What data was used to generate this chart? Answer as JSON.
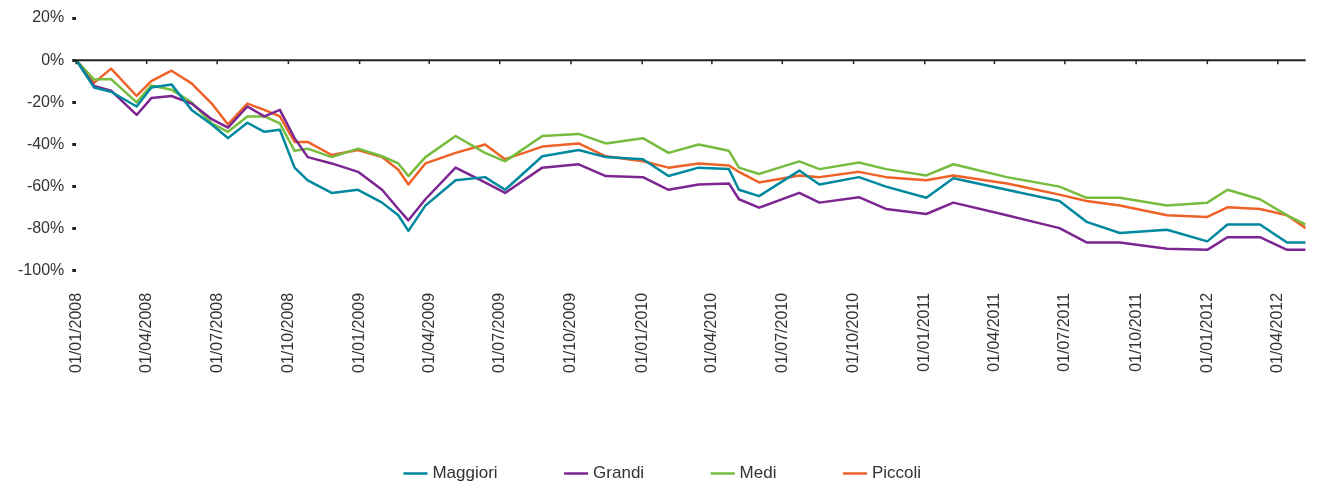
{
  "chart_data": {
    "type": "line",
    "legend": "bottom",
    "marker": "none",
    "line_style": "solid",
    "x": [
      "2008-01-01",
      "2008-01-24",
      "2008-02-15",
      "2008-03-19",
      "2008-04-07",
      "2008-05-03",
      "2008-05-29",
      "2008-06-24",
      "2008-07-15",
      "2008-08-09",
      "2008-08-31",
      "2008-09-20",
      "2008-10-09",
      "2008-10-26",
      "2008-11-26",
      "2008-12-30",
      "2009-01-30",
      "2009-02-20",
      "2009-03-05",
      "2009-03-27",
      "2009-05-05",
      "2009-06-12",
      "2009-07-08",
      "2009-08-25",
      "2009-10-11",
      "2009-11-15",
      "2010-01-02",
      "2010-02-04",
      "2010-03-15",
      "2010-04-23",
      "2010-05-06",
      "2010-06-01",
      "2010-07-23",
      "2010-08-18",
      "2010-10-08",
      "2010-11-12",
      "2011-01-03",
      "2011-02-07",
      "2011-04-17",
      "2011-06-24",
      "2011-07-29",
      "2011-09-10",
      "2011-11-10",
      "2012-01-01",
      "2012-01-27",
      "2012-03-09",
      "2012-04-13",
      "2012-05-07"
    ],
    "series": [
      {
        "name": "Maggiori",
        "color": "#00889e",
        "values": [
          0,
          -13,
          -15,
          -22,
          -13,
          -11.5,
          -23.6,
          -30.5,
          -37,
          -29.7,
          -34,
          -33,
          -51,
          -57,
          -63,
          -61.5,
          -67.6,
          -73.6,
          -81,
          -69,
          -57,
          -55.5,
          -61.5,
          -45.6,
          -42.6,
          -46,
          -47,
          -55,
          -51,
          -51.7,
          -61.5,
          -64.5,
          -52.4,
          -59,
          -55.5,
          -60,
          -65.3,
          -56,
          -61.5,
          -66.8,
          -76.7,
          -82,
          -80.5,
          -86,
          -78,
          -78,
          -86.5,
          -86.5
        ]
      },
      {
        "name": "Grandi",
        "color": "#7d2590",
        "values": [
          0,
          -12.3,
          -14.5,
          -26,
          -18,
          -17,
          -20.6,
          -28,
          -32,
          -22,
          -26.7,
          -23.6,
          -37,
          -46,
          -49,
          -53,
          -61.5,
          -70.6,
          -76,
          -66,
          -51,
          -58,
          -63,
          -51,
          -49.4,
          -55,
          -55.5,
          -61.5,
          -59,
          -58.5,
          -66,
          -70,
          -63,
          -67.6,
          -65,
          -70.6,
          -73,
          -67.6,
          -73.6,
          -79.7,
          -86.5,
          -86.5,
          -89.5,
          -90,
          -84,
          -84,
          -90,
          -90
        ]
      },
      {
        "name": "Medi",
        "color": "#76bc3f",
        "values": [
          0,
          -9.2,
          -9,
          -20,
          -12,
          -14,
          -20,
          -30,
          -34,
          -26.7,
          -26.7,
          -30,
          -43,
          -42,
          -46,
          -42,
          -45.6,
          -49,
          -55,
          -46,
          -36,
          -44,
          -48,
          -36,
          -35,
          -39.5,
          -37,
          -44,
          -40,
          -43,
          -51,
          -54,
          -48,
          -51.7,
          -48.6,
          -51.7,
          -54.7,
          -49.4,
          -55.5,
          -60,
          -65.3,
          -65.3,
          -69,
          -67.6,
          -61.5,
          -66,
          -73.6,
          -78
        ]
      },
      {
        "name": "Piccoli",
        "color": "#ee6227",
        "values": [
          0,
          -10.8,
          -4,
          -17,
          -10,
          -5,
          -11,
          -20.6,
          -30.5,
          -20.6,
          -23.6,
          -26.7,
          -38.8,
          -38.8,
          -45,
          -42.6,
          -46,
          -52,
          -59,
          -49,
          -44,
          -40,
          -47,
          -41,
          -39.5,
          -45.6,
          -48,
          -51,
          -49,
          -50,
          -53,
          -58,
          -54.7,
          -55.5,
          -53,
          -55.5,
          -57,
          -54.7,
          -58.5,
          -63.8,
          -66.8,
          -69,
          -73.6,
          -74.4,
          -69.8,
          -70.6,
          -73.6,
          -79.7
        ]
      }
    ],
    "xlim": [
      "2008-01-01",
      "2012-05-07"
    ],
    "xticks": [
      {
        "value": "2008-01-01",
        "label": "01/01/2008"
      },
      {
        "value": "2008-04-01",
        "label": "01/04/2008"
      },
      {
        "value": "2008-07-01",
        "label": "01/07/2008"
      },
      {
        "value": "2008-10-01",
        "label": "01/10/2008"
      },
      {
        "value": "2009-01-01",
        "label": "01/01/2009"
      },
      {
        "value": "2009-04-01",
        "label": "01/04/2009"
      },
      {
        "value": "2009-07-01",
        "label": "01/07/2009"
      },
      {
        "value": "2009-10-01",
        "label": "01/10/2009"
      },
      {
        "value": "2010-01-01",
        "label": "01/01/2010"
      },
      {
        "value": "2010-04-01",
        "label": "01/04/2010"
      },
      {
        "value": "2010-07-01",
        "label": "01/07/2010"
      },
      {
        "value": "2010-10-01",
        "label": "01/10/2010"
      },
      {
        "value": "2011-01-01",
        "label": "01/01/2011"
      },
      {
        "value": "2011-04-01",
        "label": "01/04/2011"
      },
      {
        "value": "2011-07-01",
        "label": "01/07/2011"
      },
      {
        "value": "2011-10-01",
        "label": "01/10/2011"
      },
      {
        "value": "2012-01-01",
        "label": "01/01/2012"
      },
      {
        "value": "2012-04-01",
        "label": "01/04/2012"
      }
    ],
    "ylim": [
      -100,
      20
    ],
    "yticks": [
      {
        "value": 20,
        "label": "20%"
      },
      {
        "value": 0,
        "label": "0%"
      },
      {
        "value": -20,
        "label": "-20%"
      },
      {
        "value": -40,
        "label": "-40%"
      },
      {
        "value": -60,
        "label": "-60%"
      },
      {
        "value": -80,
        "label": "-80%"
      },
      {
        "value": -100,
        "label": "-100%"
      }
    ]
  }
}
